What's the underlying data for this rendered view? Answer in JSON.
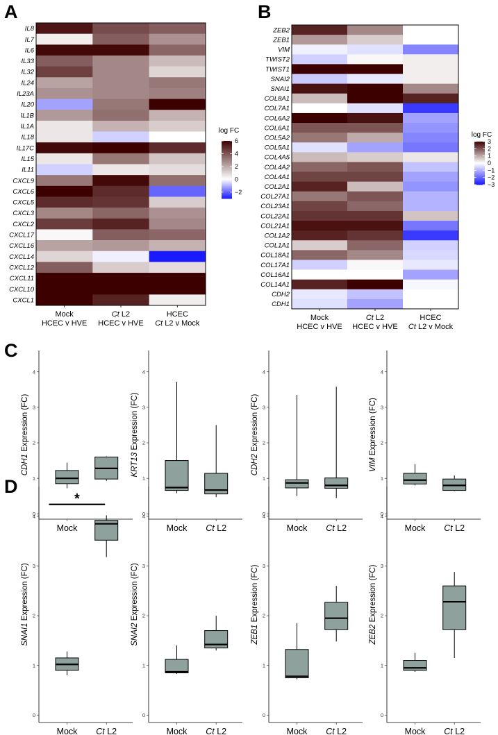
{
  "panels": {
    "a_letter": "A",
    "b_letter": "B",
    "c_letter": "C",
    "d_letter": "D"
  },
  "colors": {
    "low": "#1a1aff",
    "mid": "#ffffff",
    "high": "#3d0000",
    "box_fill": "#8fa19d",
    "box_stroke": "#000000"
  },
  "chart_data": [
    {
      "id": "heatmapA",
      "type": "heatmap",
      "rows": [
        "IL8",
        "IL7",
        "IL6",
        "IL33",
        "IL32",
        "IL24",
        "IL23A",
        "IL20",
        "IL1B",
        "IL1A",
        "IL18",
        "IL17C",
        "IL15",
        "IL11",
        "CXCL9",
        "CXCL6",
        "CXCL5",
        "CXCL3",
        "CXCL2",
        "CXCL17",
        "CXCL16",
        "CXCL14",
        "CXCL12",
        "CXCL11",
        "CXCL10",
        "CXCL1"
      ],
      "columns": [
        {
          "l1": "Mock",
          "l2": "HCEC v HVE",
          "l1_italic": "",
          "l1_rest": ""
        },
        {
          "l1": "",
          "l2": "HCEC v HVE",
          "l1_italic": "Ct",
          "l1_rest": " L2"
        },
        {
          "l1": "HCEC",
          "l2": "L2 v Mock",
          "l1_italic": "",
          "l2_italic": "Ct",
          "l1_rest": ""
        }
      ],
      "values": [
        [
          5.5,
          4.2,
          3.8
        ],
        [
          0.4,
          3.8,
          2.6
        ],
        [
          5.8,
          5.8,
          3.6
        ],
        [
          3.8,
          2.8,
          1.6
        ],
        [
          4.5,
          2.8,
          1.0
        ],
        [
          2.2,
          2.8,
          3.2
        ],
        [
          2.6,
          2.8,
          3.0
        ],
        [
          -1.2,
          3.2,
          6.0
        ],
        [
          2.4,
          3.4,
          1.8
        ],
        [
          0.6,
          1.8,
          1.2
        ],
        [
          0.6,
          -0.6,
          0.0
        ],
        [
          5.8,
          6.0,
          5.0
        ],
        [
          0.6,
          3.2,
          1.4
        ],
        [
          -0.6,
          0.6,
          0.8
        ],
        [
          3.2,
          5.8,
          3.4
        ],
        [
          6.0,
          5.0,
          -2.0
        ],
        [
          5.0,
          4.8,
          1.2
        ],
        [
          2.8,
          3.6,
          2.6
        ],
        [
          4.6,
          5.2,
          2.8
        ],
        [
          0.2,
          3.8,
          3.6
        ],
        [
          2.2,
          2.4,
          1.8
        ],
        [
          1.0,
          -0.2,
          -3.0
        ],
        [
          3.8,
          1.2,
          0.8
        ],
        [
          6.0,
          6.0,
          6.0
        ],
        [
          6.0,
          6.0,
          6.0
        ],
        [
          6.0,
          5.2,
          0.4
        ]
      ],
      "legend_title": "log FC",
      "legend_ticks": [
        6,
        4,
        2,
        0,
        -2
      ],
      "vmin": -3,
      "vmax": 6
    },
    {
      "id": "heatmapB",
      "type": "heatmap",
      "rows": [
        "ZEB2",
        "ZEB1",
        "VIM",
        "TWIST2",
        "TWIST1",
        "SNAI2",
        "SNAI1",
        "COL8A1",
        "COL7A1",
        "COL6A2",
        "COL6A1",
        "COL5A2",
        "COL5A1",
        "COL4A5",
        "COL4A2",
        "COL4A1",
        "COL2A1",
        "COL27A1",
        "COL23A1",
        "COL22A1",
        "COL21A1",
        "COL1A2",
        "COL1A1",
        "COL18A1",
        "COL17A1",
        "COL16A1",
        "COL14A1",
        "CDH2",
        "CDH1"
      ],
      "columns": [
        {
          "l1": "Mock",
          "l2": "HCEC v HVE"
        },
        {
          "l1": "L2",
          "l2": "HCEC v HVE",
          "l1_italic": "Ct"
        },
        {
          "l1": "HCEC",
          "l2": "L2 v Mock",
          "l2_italic": "Ct"
        }
      ],
      "values": [
        [
          2.6,
          1.4,
          null
        ],
        [
          1.2,
          0.6,
          null
        ],
        [
          -0.2,
          -0.4,
          -1.6
        ],
        [
          -0.6,
          0.1,
          0.2
        ],
        [
          3.0,
          3.0,
          0.2
        ],
        [
          -0.7,
          -0.3,
          0.2
        ],
        [
          2.8,
          3.0,
          1.4
        ],
        [
          0.8,
          3.0,
          2.6
        ],
        [
          0.0,
          -0.4,
          -2.6
        ],
        [
          3.0,
          2.8,
          -1.2
        ],
        [
          2.0,
          2.0,
          -1.4
        ],
        [
          1.6,
          1.0,
          -1.6
        ],
        [
          -0.4,
          -1.2,
          -1.8
        ],
        [
          0.8,
          0.6,
          0.3
        ],
        [
          1.8,
          2.0,
          -0.8
        ],
        [
          2.2,
          2.2,
          -1.2
        ],
        [
          2.6,
          0.8,
          -1.4
        ],
        [
          1.6,
          2.0,
          -1.0
        ],
        [
          2.2,
          1.8,
          -1.0
        ],
        [
          2.4,
          2.4,
          0.7
        ],
        [
          2.8,
          2.8,
          -1.8
        ],
        [
          2.6,
          2.4,
          -2.6
        ],
        [
          0.6,
          1.8,
          -0.6
        ],
        [
          1.8,
          1.4,
          -0.5
        ],
        [
          -0.6,
          0.1,
          -0.3
        ],
        [
          0.0,
          0.0,
          -1.2
        ],
        [
          2.6,
          3.0,
          -0.1
        ],
        [
          -0.3,
          -0.8,
          null
        ],
        [
          -0.4,
          -1.2,
          null
        ]
      ],
      "legend_title": "log FC",
      "legend_ticks": [
        3,
        2,
        1,
        0,
        -1,
        -2,
        -3
      ],
      "vmin": -3,
      "vmax": 3
    },
    {
      "id": "boxC1",
      "type": "box",
      "gene": "CDH1",
      "ylabel_rest": " Expression (FC)",
      "categories": [
        {
          "italic": "",
          "rest": "Mock"
        },
        {
          "italic": "Ct",
          "rest": " L2"
        }
      ],
      "yticks": [
        0,
        1,
        2,
        3,
        4
      ],
      "ylim": [
        -0.15,
        4.6
      ],
      "boxes": [
        {
          "min": 0.72,
          "q1": 0.85,
          "median": 1.0,
          "q3": 1.22,
          "max": 1.44
        },
        {
          "min": 0.93,
          "q1": 0.98,
          "median": 1.28,
          "q3": 1.6,
          "max": 1.62
        }
      ]
    },
    {
      "id": "boxC2",
      "type": "box",
      "gene": "KRT13",
      "ylabel_rest": " Expression (FC)",
      "categories": [
        {
          "italic": "",
          "rest": "Mock"
        },
        {
          "italic": "Ct",
          "rest": " L2"
        }
      ],
      "yticks": [
        0,
        1,
        2,
        3,
        4
      ],
      "ylim": [
        -0.15,
        4.6
      ],
      "boxes": [
        {
          "min": 0.58,
          "q1": 0.66,
          "median": 0.74,
          "q3": 1.5,
          "max": 3.72
        },
        {
          "min": 0.47,
          "q1": 0.56,
          "median": 0.67,
          "q3": 1.14,
          "max": 2.5
        }
      ]
    },
    {
      "id": "boxC3",
      "type": "box",
      "gene": "CDH2",
      "ylabel_rest": " Expression (FC)",
      "categories": [
        {
          "italic": "",
          "rest": "Mock"
        },
        {
          "italic": "Ct",
          "rest": " L2"
        }
      ],
      "yticks": [
        0,
        1,
        2,
        3,
        4
      ],
      "ylim": [
        -0.15,
        4.6
      ],
      "boxes": [
        {
          "min": 0.5,
          "q1": 0.73,
          "median": 0.87,
          "q3": 0.96,
          "max": 3.35
        },
        {
          "min": 0.44,
          "q1": 0.72,
          "median": 0.8,
          "q3": 1.01,
          "max": 3.58
        }
      ]
    },
    {
      "id": "boxC4",
      "type": "box",
      "gene": "VIM",
      "ylabel_rest": " Expression (FC)",
      "categories": [
        {
          "italic": "",
          "rest": "Mock"
        },
        {
          "italic": "Ct",
          "rest": " L2"
        }
      ],
      "yticks": [
        0,
        1,
        2,
        3,
        4
      ],
      "ylim": [
        -0.15,
        4.6
      ],
      "boxes": [
        {
          "min": 0.8,
          "q1": 0.84,
          "median": 0.95,
          "q3": 1.14,
          "max": 1.4
        },
        {
          "min": 0.64,
          "q1": 0.66,
          "median": 0.8,
          "q3": 0.98,
          "max": 1.08
        }
      ]
    },
    {
      "id": "boxD1",
      "type": "box",
      "gene": "SNAI1",
      "ylabel_rest": " Expression (FC)",
      "categories": [
        {
          "italic": "",
          "rest": "Mock"
        },
        {
          "italic": "Ct",
          "rest": " L2"
        }
      ],
      "yticks": [
        0,
        1,
        2,
        3,
        4
      ],
      "ylim": [
        -0.15,
        4.6
      ],
      "significance": "*",
      "boxes": [
        {
          "min": 0.8,
          "q1": 0.9,
          "median": 1.02,
          "q3": 1.15,
          "max": 1.28
        },
        {
          "min": 3.18,
          "q1": 3.52,
          "median": 3.85,
          "q3": 3.92,
          "max": 4.02
        }
      ]
    },
    {
      "id": "boxD2",
      "type": "box",
      "gene": "SNAI2",
      "ylabel_rest": " Expression (FC)",
      "categories": [
        {
          "italic": "",
          "rest": "Mock"
        },
        {
          "italic": "Ct",
          "rest": " L2"
        }
      ],
      "yticks": [
        0,
        1,
        2,
        3,
        4
      ],
      "ylim": [
        -0.15,
        4.6
      ],
      "boxes": [
        {
          "min": 0.83,
          "q1": 0.85,
          "median": 0.87,
          "q3": 1.12,
          "max": 1.4
        },
        {
          "min": 1.3,
          "q1": 1.35,
          "median": 1.42,
          "q3": 1.7,
          "max": 2.0
        }
      ]
    },
    {
      "id": "boxD3",
      "type": "box",
      "gene": "ZEB1",
      "ylabel_rest": " Expression (FC)",
      "categories": [
        {
          "italic": "",
          "rest": "Mock"
        },
        {
          "italic": "Ct",
          "rest": " L2"
        }
      ],
      "yticks": [
        0,
        1,
        2,
        3,
        4
      ],
      "ylim": [
        -0.15,
        4.6
      ],
      "boxes": [
        {
          "min": 0.72,
          "q1": 0.75,
          "median": 0.78,
          "q3": 1.32,
          "max": 1.85
        },
        {
          "min": 1.48,
          "q1": 1.72,
          "median": 1.95,
          "q3": 2.27,
          "max": 2.6
        }
      ]
    },
    {
      "id": "boxD4",
      "type": "box",
      "gene": "ZEB2",
      "ylabel_rest": " Expression (FC)",
      "categories": [
        {
          "italic": "",
          "rest": "Mock"
        },
        {
          "italic": "Ct",
          "rest": " L2"
        }
      ],
      "yticks": [
        0,
        1,
        2,
        3,
        4
      ],
      "ylim": [
        -0.15,
        4.6
      ],
      "boxes": [
        {
          "min": 0.87,
          "q1": 0.9,
          "median": 0.95,
          "q3": 1.1,
          "max": 1.25
        },
        {
          "min": 1.15,
          "q1": 1.72,
          "median": 2.28,
          "q3": 2.6,
          "max": 2.88
        }
      ]
    }
  ]
}
